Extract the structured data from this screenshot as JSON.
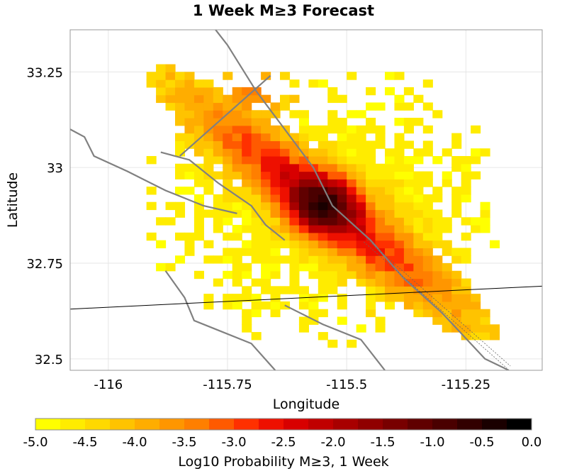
{
  "chart_data": {
    "type": "heatmap",
    "title": "1 Week M≥3 Forecast",
    "xlabel": "Longitude",
    "ylabel": "Latitude",
    "xlim": [
      -116.08,
      -115.09
    ],
    "ylim": [
      32.47,
      33.36
    ],
    "x_ticks": [
      {
        "value": -116,
        "label": "-116"
      },
      {
        "value": -115.75,
        "label": "-115.75"
      },
      {
        "value": -115.5,
        "label": "-115.5"
      },
      {
        "value": -115.25,
        "label": "-115.25"
      }
    ],
    "y_ticks": [
      {
        "value": 33.25,
        "label": "33.25"
      },
      {
        "value": 33,
        "label": "33"
      },
      {
        "value": 32.75,
        "label": "32.75"
      },
      {
        "value": 32.5,
        "label": "32.5"
      }
    ],
    "grid": true,
    "cell_size_deg": 0.02,
    "model": {
      "peak": [
        -115.55,
        32.905
      ],
      "peak_log10": -0.4,
      "core_sigma": 0.05,
      "fault_axis": [
        -0.71,
        0.7
      ],
      "along_sigma": 0.28,
      "across_sigma": 0.05,
      "background_log10": -4.9,
      "coverage_radius_deg": 0.36,
      "nw_extension": {
        "center": [
          -115.7,
          33.2
        ],
        "log10": -3.0,
        "sigma": 0.06
      },
      "cutoff_log10": -4.8
    },
    "colorbar": {
      "label": "Log10 Probability M≥3, 1 Week",
      "min": -5.0,
      "max": 0.0,
      "ticks": [
        "-5.0",
        "-4.5",
        "-4.0",
        "-3.5",
        "-3.0",
        "-2.5",
        "-2.0",
        "-1.5",
        "-1.0",
        "-0.5",
        "0.0"
      ],
      "colors": [
        "#ffff00",
        "#ffec00",
        "#ffd900",
        "#ffc300",
        "#ffad00",
        "#ff9600",
        "#ff7f00",
        "#ff5a00",
        "#ff3000",
        "#ee1000",
        "#d80000",
        "#c00000",
        "#a80000",
        "#900000",
        "#780000",
        "#600000",
        "#4a0000",
        "#320000",
        "#1a0000",
        "#000000"
      ]
    },
    "faults": [
      [
        [
          -115.8,
          33.4
        ],
        [
          -115.75,
          33.32
        ],
        [
          -115.69,
          33.2
        ],
        [
          -115.63,
          33.1
        ],
        [
          -115.57,
          33.0
        ],
        [
          -115.53,
          32.9
        ],
        [
          -115.45,
          32.81
        ],
        [
          -115.38,
          32.71
        ],
        [
          -115.3,
          32.62
        ],
        [
          -115.21,
          32.5
        ],
        [
          -115.16,
          32.47
        ]
      ],
      [
        [
          -115.78,
          33.41
        ],
        [
          -115.74,
          33.39
        ]
      ],
      [
        [
          -115.66,
          33.24
        ],
        [
          -115.85,
          33.03
        ]
      ],
      [
        [
          -116.08,
          33.1
        ],
        [
          -116.05,
          33.08
        ],
        [
          -116.03,
          33.03
        ],
        [
          -115.96,
          32.99
        ],
        [
          -115.88,
          32.94
        ],
        [
          -115.8,
          32.9
        ],
        [
          -115.73,
          32.88
        ]
      ],
      [
        [
          -115.89,
          33.04
        ],
        [
          -115.83,
          33.02
        ],
        [
          -115.77,
          32.96
        ],
        [
          -115.7,
          32.9
        ],
        [
          -115.67,
          32.85
        ],
        [
          -115.63,
          32.81
        ]
      ],
      [
        [
          -115.88,
          32.73
        ],
        [
          -115.84,
          32.66
        ],
        [
          -115.82,
          32.6
        ],
        [
          -115.78,
          32.58
        ],
        [
          -115.7,
          32.54
        ],
        [
          -115.65,
          32.47
        ]
      ],
      [
        [
          -115.63,
          32.64
        ],
        [
          -115.55,
          32.59
        ],
        [
          -115.47,
          32.55
        ],
        [
          -115.42,
          32.47
        ]
      ]
    ],
    "fault_zone": [
      [
        -115.47,
        32.8
      ],
      [
        -115.17,
        32.47
      ]
    ],
    "border_line": [
      [
        -116.08,
        32.63
      ],
      [
        -115.09,
        32.69
      ]
    ]
  }
}
